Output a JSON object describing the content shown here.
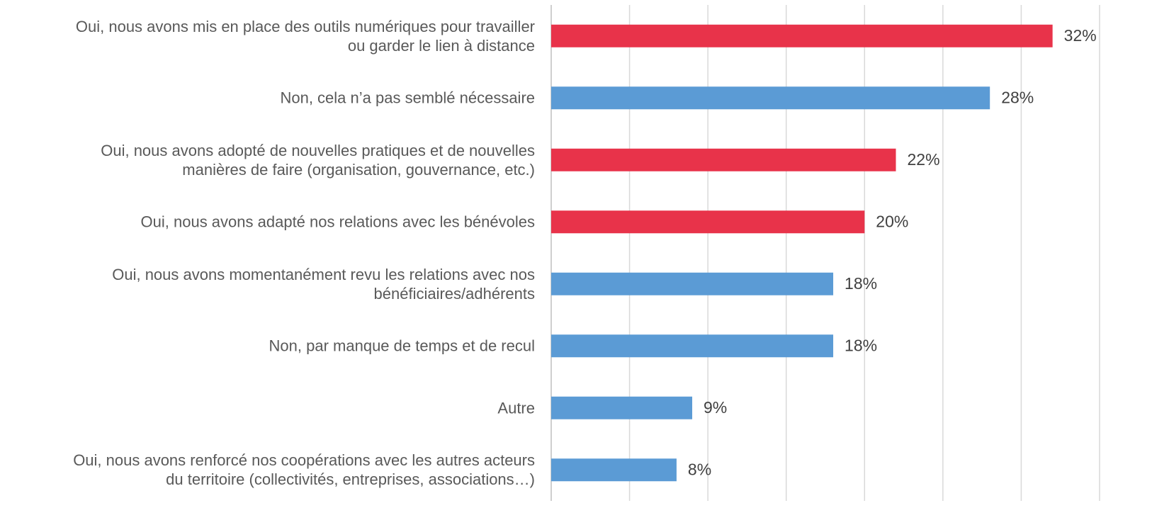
{
  "chart_data": {
    "type": "bar",
    "orientation": "horizontal",
    "categories": [
      "Oui, nous avons mis en place des outils numériques pour travailler\nou garder le lien à distance",
      "Non, cela n’a pas semblé nécessaire",
      "Oui, nous avons adopté de nouvelles pratiques et de nouvelles\nmanières de faire (organisation, gouvernance, etc.)",
      "Oui, nous avons adapté nos relations avec les bénévoles",
      "Oui, nous avons momentanément revu les relations avec nos\nbénéficiaires/adhérents",
      "Non, par manque de temps et de recul",
      "Autre",
      "Oui, nous avons renforcé nos coopérations avec les autres acteurs\ndu territoire (collectivités, entreprises, associations…)"
    ],
    "values": [
      32,
      28,
      22,
      20,
      18,
      18,
      9,
      8
    ],
    "value_labels": [
      "32%",
      "28%",
      "22%",
      "20%",
      "18%",
      "18%",
      "9%",
      "8%"
    ],
    "colors": [
      "#e8334a",
      "#5b9bd5",
      "#e8334a",
      "#e8334a",
      "#5b9bd5",
      "#5b9bd5",
      "#5b9bd5",
      "#5b9bd5"
    ],
    "xlim": [
      0,
      35
    ],
    "xticks": [
      0,
      5,
      10,
      15,
      20,
      25,
      30,
      35
    ],
    "grid": true
  }
}
